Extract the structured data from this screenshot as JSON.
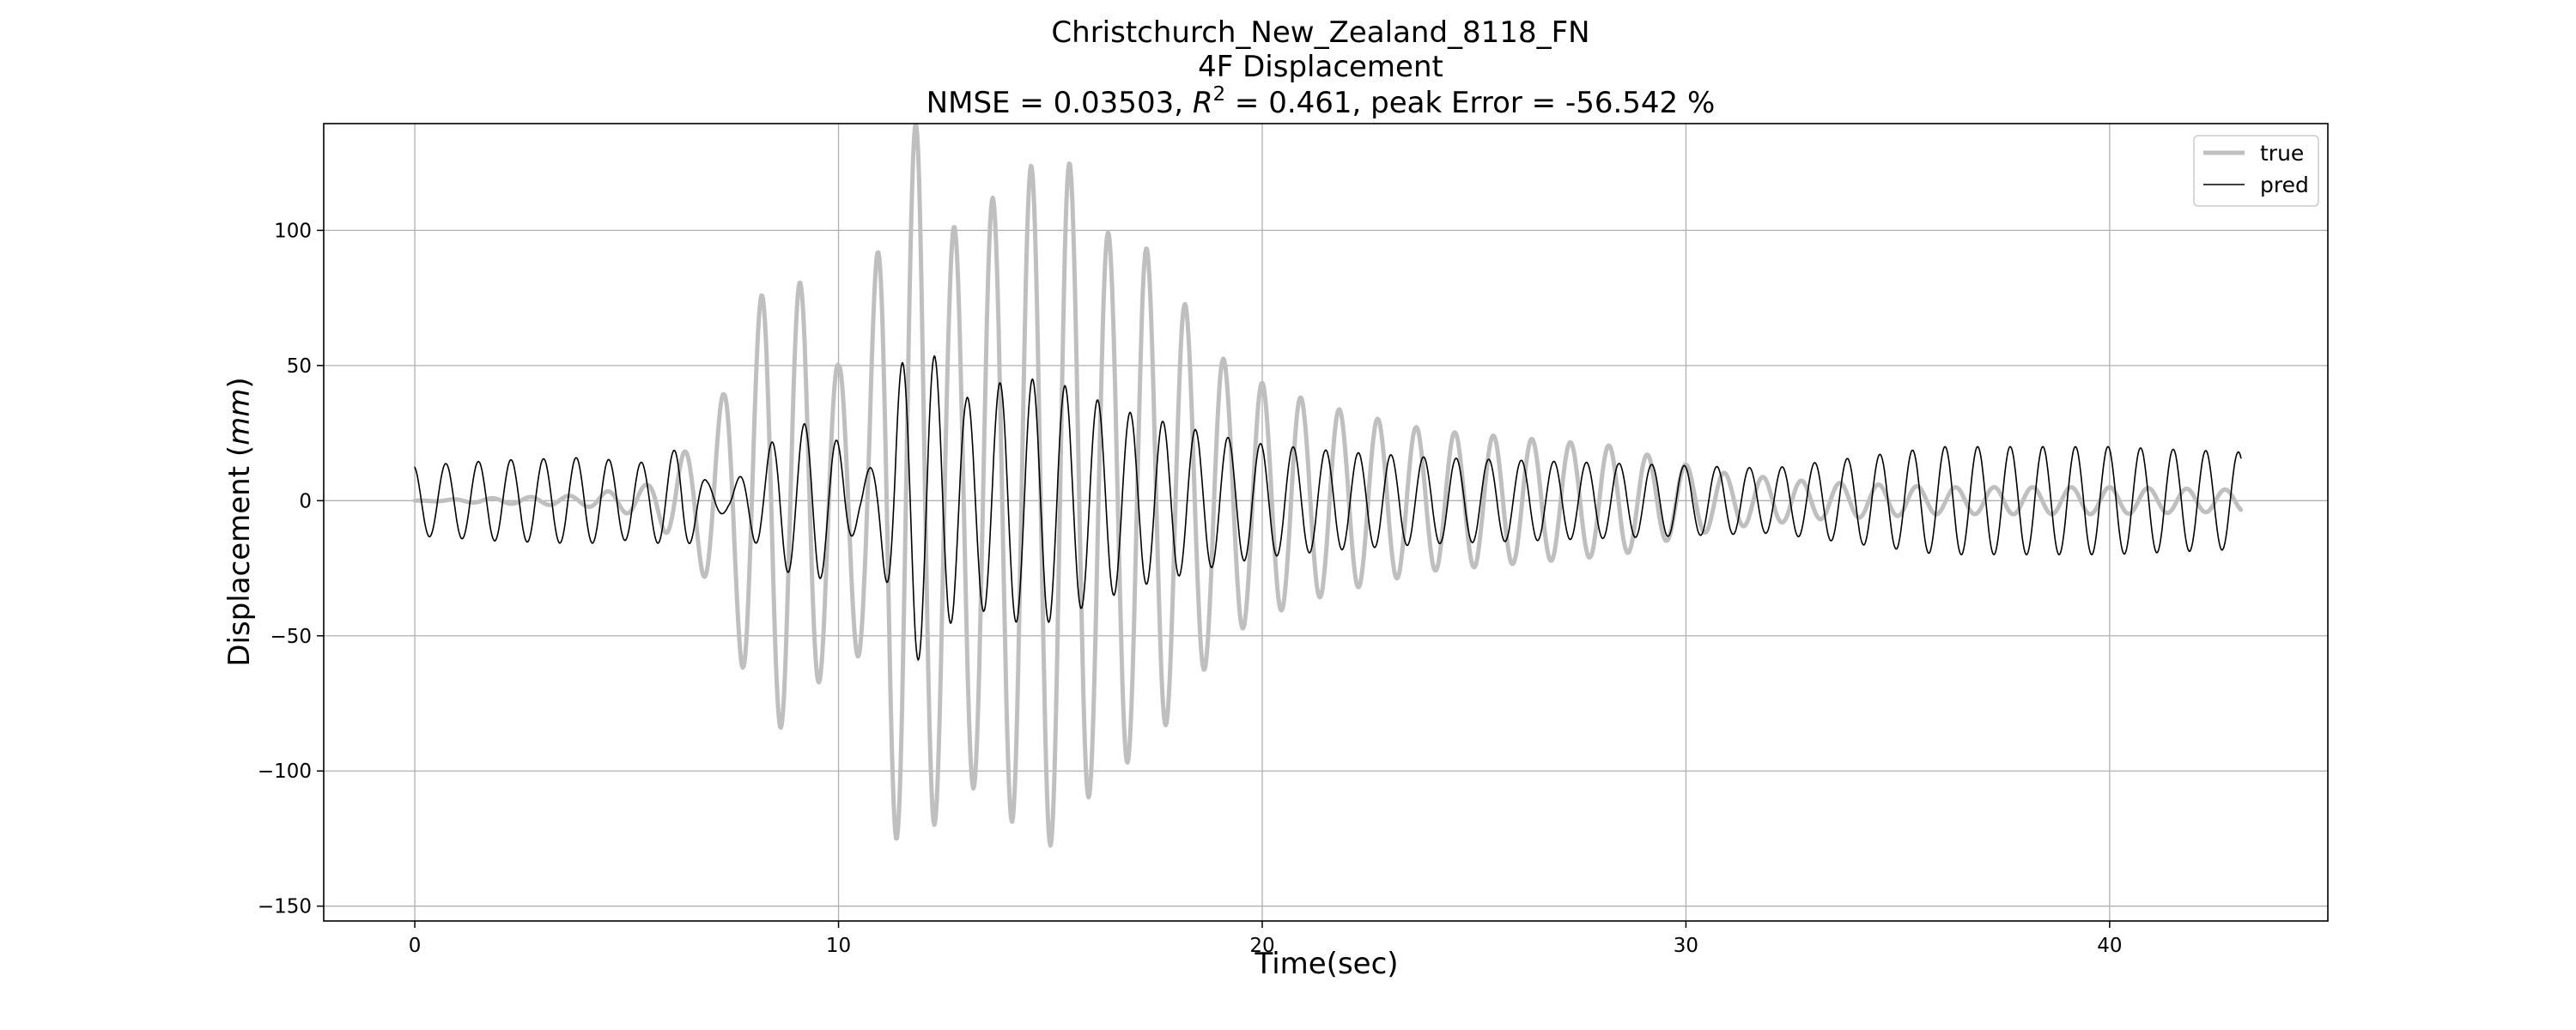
{
  "chart_data": {
    "type": "line",
    "title_line1": "Christchurch_New_Zealand_8118_FN",
    "title_line2": "4F Displacement",
    "title_metrics_prefix": "NMSE = 0.03503, ",
    "title_r2_symbol": "R",
    "title_r2_exponent": "2",
    "title_metrics_suffix": " = 0.461, peak Error = -56.542 %",
    "xlabel": "Time(sec)",
    "ylabel_prefix": "Displacement (",
    "ylabel_unit": "mm",
    "ylabel_suffix": ")",
    "xlim": [
      -2.15,
      45.15
    ],
    "ylim": [
      -155.5,
      139.5
    ],
    "xticks": [
      0,
      10,
      20,
      30,
      40
    ],
    "yticks": [
      -150,
      -100,
      -50,
      0,
      50,
      100
    ],
    "grid": true,
    "legend_position": "top-right",
    "sample_interval": 0.02,
    "duration": 43.1,
    "series": [
      {
        "name": "true",
        "color": "#bfbfbf",
        "style": "thick",
        "frequency_hz": 1.1,
        "phase_turns": 0.25,
        "amplitude_envelope": [
          [
            0,
            0
          ],
          [
            4,
            2
          ],
          [
            5.5,
            6
          ],
          [
            6.5,
            20
          ],
          [
            7.3,
            40
          ],
          [
            7.8,
            65
          ],
          [
            8.5,
            85
          ],
          [
            9.2,
            80
          ],
          [
            10,
            50
          ],
          [
            10.6,
            60
          ],
          [
            11.2,
            120
          ],
          [
            11.9,
            142
          ],
          [
            12.6,
            100
          ],
          [
            13.5,
            110
          ],
          [
            14.3,
            122
          ],
          [
            15.3,
            130
          ],
          [
            16.2,
            100
          ],
          [
            17.2,
            95
          ],
          [
            18.3,
            70
          ],
          [
            19.2,
            50
          ],
          [
            20.2,
            42
          ],
          [
            21.5,
            35
          ],
          [
            22.8,
            30
          ],
          [
            24,
            26
          ],
          [
            25.5,
            24
          ],
          [
            27,
            22
          ],
          [
            28.5,
            20
          ],
          [
            29.5,
            15
          ],
          [
            31,
            10
          ],
          [
            33,
            7
          ],
          [
            36,
            5
          ],
          [
            40,
            5
          ],
          [
            43.1,
            4
          ]
        ]
      },
      {
        "name": "pred",
        "color": "#000000",
        "style": "thin",
        "frequency_hz": 1.3,
        "phase_turns": 0.3,
        "amplitude_envelope": [
          [
            0,
            13
          ],
          [
            2,
            15
          ],
          [
            4,
            16
          ],
          [
            5.5,
            14
          ],
          [
            6.3,
            20
          ],
          [
            6.9,
            7
          ],
          [
            7.4,
            4
          ],
          [
            8,
            15
          ],
          [
            8.7,
            26
          ],
          [
            9.5,
            30
          ],
          [
            10.1,
            20
          ],
          [
            10.5,
            8
          ],
          [
            10.9,
            15
          ],
          [
            11.4,
            48
          ],
          [
            11.8,
            60
          ],
          [
            12.2,
            55
          ],
          [
            13,
            38
          ],
          [
            14,
            45
          ],
          [
            15,
            45
          ],
          [
            16,
            38
          ],
          [
            17,
            32
          ],
          [
            18,
            28
          ],
          [
            19,
            24
          ],
          [
            20,
            21
          ],
          [
            22,
            18
          ],
          [
            24,
            16
          ],
          [
            26,
            15
          ],
          [
            28,
            14
          ],
          [
            30,
            13
          ],
          [
            32,
            12
          ],
          [
            34,
            16
          ],
          [
            36,
            20
          ],
          [
            40,
            20
          ],
          [
            43.1,
            18
          ]
        ]
      }
    ]
  }
}
